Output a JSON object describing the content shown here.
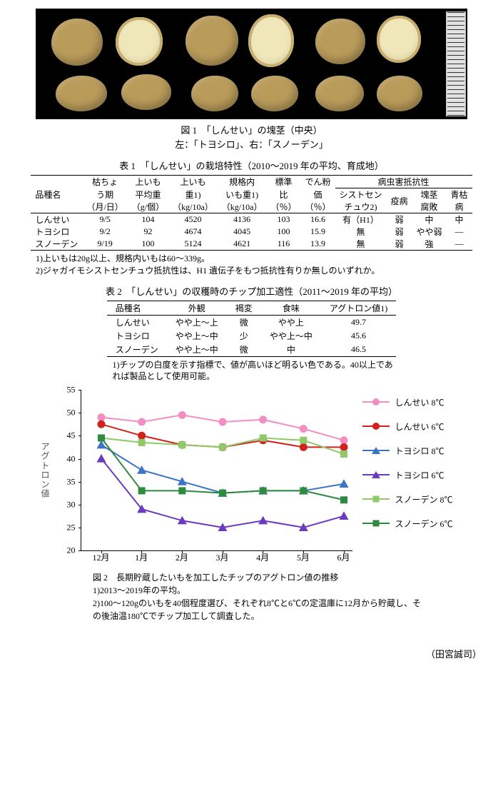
{
  "fig1": {
    "caption_line1": "図 1　「しんせい」の塊茎（中央）",
    "caption_line2": "左：「トヨシロ」、右：「スノーデン」"
  },
  "table1": {
    "title": "表 1　「しんせい」の栽培特性（2010～2019 年の平均、育成地）",
    "headers": {
      "hinshu": "品種名",
      "karecho1": "枯ちょ",
      "karecho2": "う期",
      "karecho3": "（月/日）",
      "kamiimo_avg1": "上いも",
      "kamiimo_avg2": "平均重",
      "kamiimo_avg3": "（g/個）",
      "kamiimo_wt1": "上いも",
      "kamiimo_wt2": "重1)",
      "kamiimo_wt3": "（kg/10a）",
      "kikaku1": "規格内",
      "kikaku2": "いも重1)",
      "kikaku3": "（kg/10a）",
      "hyoujun1": "標準",
      "hyoujun2": "比",
      "hyoujun3": "（％）",
      "denpun1": "でん粉",
      "denpun2": "価",
      "denpun3": "（％）",
      "resist_group": "病虫害抵抗性",
      "cyst1": "シストセン",
      "cyst2": "チュウ2)",
      "ekibyou": "疫病",
      "fuhai1": "塊茎",
      "fuhai2": "腐敗",
      "aogare1": "青枯",
      "aogare2": "病"
    },
    "rows": [
      {
        "name": "しんせい",
        "kare": "9/5",
        "avg": "104",
        "wt": "4520",
        "kikaku": "4136",
        "hyoujun": "103",
        "denpun": "16.6",
        "cyst": "有（H1）",
        "ekibyou": "弱",
        "fuhai": "中",
        "aogare": "中"
      },
      {
        "name": "トヨシロ",
        "kare": "9/2",
        "avg": "92",
        "wt": "4674",
        "kikaku": "4045",
        "hyoujun": "100",
        "denpun": "15.9",
        "cyst": "無",
        "ekibyou": "弱",
        "fuhai": "やや弱",
        "aogare": "—"
      },
      {
        "name": "スノーデン",
        "kare": "9/19",
        "avg": "100",
        "wt": "5124",
        "kikaku": "4621",
        "hyoujun": "116",
        "denpun": "13.9",
        "cyst": "無",
        "ekibyou": "弱",
        "fuhai": "強",
        "aogare": "—"
      }
    ],
    "note1": "1)上いもは20g以上、規格内いもは60～339g。",
    "note2": "2)ジャガイモシストセンチュウ抵抗性は、H1 遺伝子をもつ抵抗性有りか無しのいずれか。"
  },
  "table2": {
    "title": "表 2　「しんせい」の収穫時のチップ加工適性（2011～2019 年の平均）",
    "headers": {
      "hinshu": "品種名",
      "gaikan": "外観",
      "kappen": "褐変",
      "shokumi": "食味",
      "agtron": "アグトロン値1)"
    },
    "rows": [
      {
        "name": "しんせい",
        "gaikan": "やや上～上",
        "kappen": "微",
        "shokumi": "やや上",
        "agtron": "49.7"
      },
      {
        "name": "トヨシロ",
        "gaikan": "やや上～中",
        "kappen": "少",
        "shokumi": "やや上～中",
        "agtron": "45.6"
      },
      {
        "name": "スノーデン",
        "gaikan": "やや上～中",
        "kappen": "微",
        "shokumi": "中",
        "agtron": "46.5"
      }
    ],
    "note": "1)チップの白度を示す指標で、値が高いほど明るい色である。40以上であれば製品として使用可能。"
  },
  "chart": {
    "type": "line",
    "y_label": "アグトロン値",
    "ylim": [
      20,
      55
    ],
    "yticks": [
      20,
      25,
      30,
      35,
      40,
      45,
      50,
      55
    ],
    "categories": [
      "12月",
      "1月",
      "2月",
      "3月",
      "4月",
      "5月",
      "6月"
    ],
    "line_width": 2,
    "marker_size": 10,
    "background_color": "#ffffff",
    "axis_color": "#000000",
    "series": [
      {
        "name": "しんせい 8℃",
        "color": "#f28ec3",
        "marker": "circle",
        "values": [
          49.0,
          48.0,
          49.5,
          48.0,
          48.5,
          46.5,
          44.0
        ]
      },
      {
        "name": "しんせい 6℃",
        "color": "#d3221c",
        "marker": "circle",
        "values": [
          47.5,
          45.0,
          43.0,
          42.5,
          44.0,
          42.5,
          42.5
        ]
      },
      {
        "name": "トヨシロ 8℃",
        "color": "#3b73c7",
        "marker": "triangle",
        "values": [
          43.0,
          37.5,
          35.0,
          32.5,
          33.0,
          33.0,
          34.5
        ]
      },
      {
        "name": "トヨシロ 6℃",
        "color": "#6a3bbf",
        "marker": "triangle",
        "values": [
          40.0,
          29.0,
          26.5,
          25.0,
          26.5,
          25.0,
          27.5
        ]
      },
      {
        "name": "スノーデン 8℃",
        "color": "#8fc96a",
        "marker": "square",
        "values": [
          44.5,
          43.5,
          43.0,
          42.5,
          44.5,
          44.0,
          41.0
        ]
      },
      {
        "name": "スノーデン 6℃",
        "color": "#2e8a3d",
        "marker": "square",
        "values": [
          44.5,
          33.0,
          33.0,
          32.5,
          33.0,
          33.0,
          31.0
        ]
      }
    ]
  },
  "fig2": {
    "title": "図 2　長期貯蔵したいもを加工したチップのアグトロン値の推移",
    "note1": "1)2013～2019年の平均。",
    "note2": "2)100～120gのいもを40個程度選び、それぞれ8℃と6℃の定温庫に12月から貯蔵し、その後油温180℃でチップ加工して調査した。"
  },
  "author": "（田宮誠司）"
}
